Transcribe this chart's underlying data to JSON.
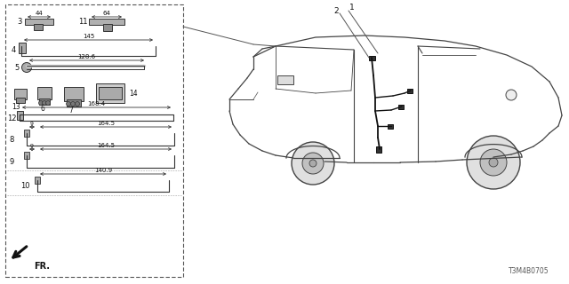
{
  "bg_color": "#ffffff",
  "diagram_code": "T3M4B0705",
  "line_color": "#333333",
  "part_color": "#888888",
  "car_color": "#444444"
}
